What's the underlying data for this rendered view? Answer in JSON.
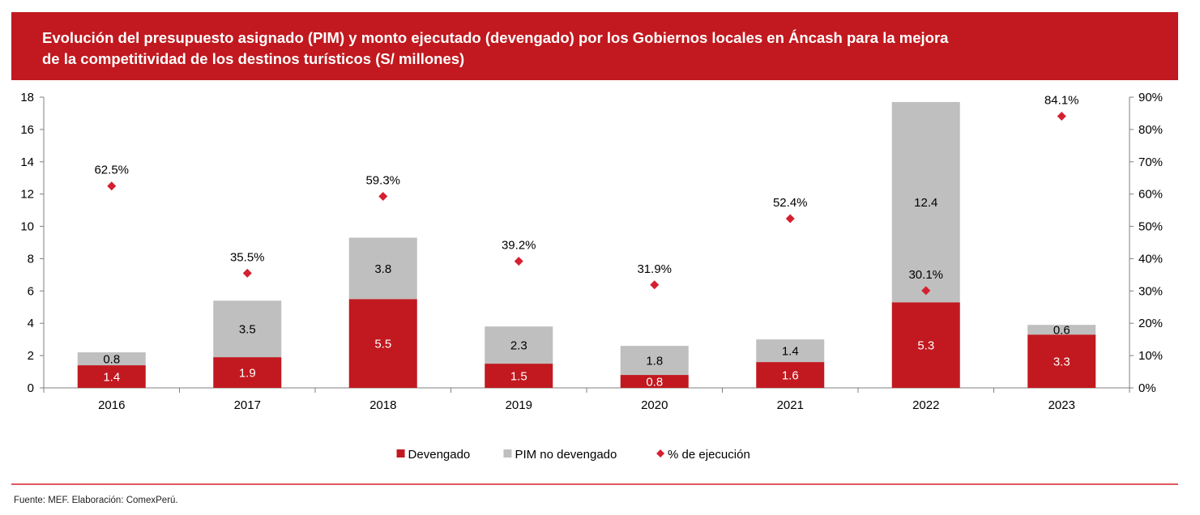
{
  "title": {
    "line1": "Evolución del presupuesto asignado (PIM) y monto ejecutado (devengado) por los Gobiernos locales en Áncash para la mejora",
    "line2": "de la competitividad de los destinos turísticos (S/ millones)"
  },
  "source": "Fuente: MEF. Elaboración: ComexPerú.",
  "colors": {
    "banner": "#c1191f",
    "devengado": "#c1191f",
    "pim": "#bfbfbf",
    "marker": "#d42030"
  },
  "chart_data": {
    "type": "bar",
    "stacked": true,
    "categories": [
      "2016",
      "2017",
      "2018",
      "2019",
      "2020",
      "2021",
      "2022",
      "2023"
    ],
    "series": [
      {
        "name": "Devengado",
        "values": [
          1.4,
          1.9,
          5.5,
          1.5,
          0.8,
          1.6,
          5.3,
          3.3
        ],
        "labels": [
          "1.4",
          "1.9",
          "5.5",
          "1.5",
          "0.8",
          "1.6",
          "5.3",
          "3.3"
        ],
        "color": "#c1191f",
        "label_color": "#ffffff"
      },
      {
        "name": "PIM no devengado",
        "values": [
          0.8,
          3.5,
          3.8,
          2.3,
          1.8,
          1.4,
          12.4,
          0.6
        ],
        "labels": [
          "0.8",
          "3.5",
          "3.8",
          "2.3",
          "1.8",
          "1.4",
          "12.4",
          "0.6"
        ],
        "color": "#bfbfbf",
        "label_color": "#000000"
      }
    ],
    "line_series": {
      "name": "% de ejecución",
      "axis": "right",
      "values": [
        62.5,
        35.5,
        59.3,
        39.2,
        31.9,
        52.4,
        30.1,
        84.1
      ],
      "labels": [
        "62.5%",
        "35.5%",
        "59.3%",
        "39.2%",
        "31.9%",
        "52.4%",
        "30.1%",
        "84.1%"
      ],
      "marker": "diamond",
      "color": "#d42030"
    },
    "y_left": {
      "range": [
        0,
        18
      ],
      "ticks": [
        "0",
        "2",
        "4",
        "6",
        "8",
        "10",
        "12",
        "14",
        "16",
        "18"
      ]
    },
    "y_right": {
      "range": [
        0,
        90
      ],
      "ticks": [
        "0%",
        "10%",
        "20%",
        "30%",
        "40%",
        "50%",
        "60%",
        "70%",
        "80%",
        "90%"
      ]
    },
    "legend": {
      "position": "bottom",
      "items": [
        {
          "label": "Devengado",
          "shape": "square",
          "color": "#c1191f"
        },
        {
          "label": "PIM no devengado",
          "shape": "square",
          "color": "#bfbfbf"
        },
        {
          "label": "% de ejecución",
          "shape": "diamond",
          "color": "#d42030"
        }
      ]
    },
    "grid": false
  }
}
